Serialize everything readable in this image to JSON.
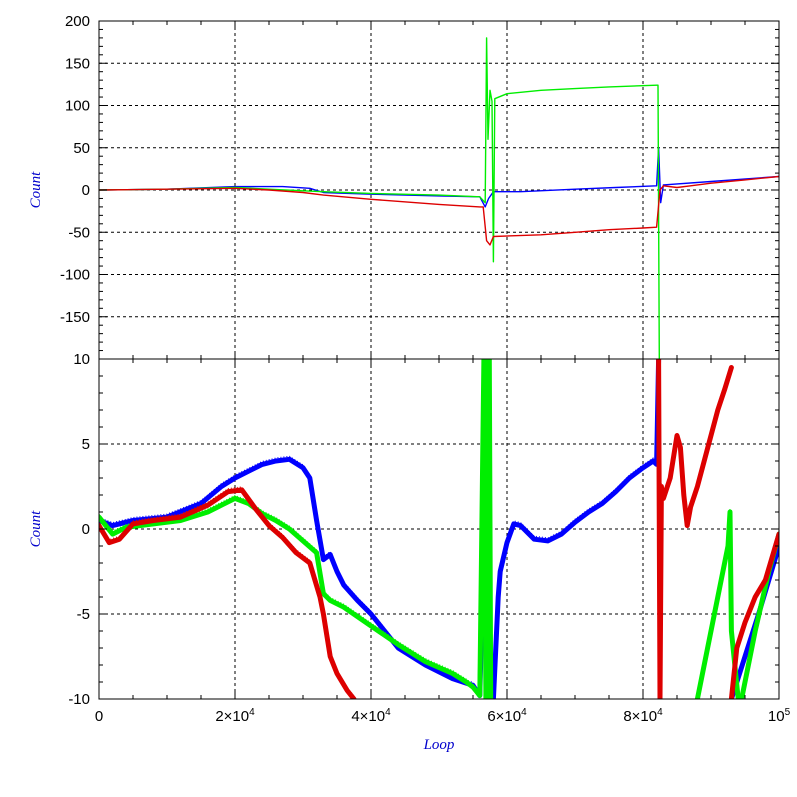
{
  "chart_data": [
    {
      "panel": "top",
      "type": "line",
      "title": "",
      "xlabel": "",
      "ylabel": "Count",
      "xlim": [
        0,
        100000
      ],
      "ylim": [
        -200,
        200
      ],
      "yticks": [
        200,
        150,
        100,
        50,
        0,
        -50,
        -100,
        -150
      ],
      "ytick_labels": [
        "200",
        "150",
        "100",
        "50",
        "0",
        "-50",
        "-100",
        "-150"
      ],
      "grid": true,
      "series": [
        {
          "color": "#0000ff",
          "points": [
            [
              0,
              0
            ],
            [
              10000,
              1
            ],
            [
              20000,
              4
            ],
            [
              27000,
              4
            ],
            [
              31000,
              2
            ],
            [
              33000,
              -3
            ],
            [
              40000,
              -5
            ],
            [
              50000,
              -7
            ],
            [
              56000,
              -8
            ],
            [
              56800,
              -20
            ],
            [
              57300,
              -10
            ],
            [
              58000,
              -2
            ],
            [
              62000,
              -2
            ],
            [
              70000,
              1
            ],
            [
              76000,
              3
            ],
            [
              82000,
              5
            ],
            [
              82300,
              50
            ],
            [
              82600,
              -15
            ],
            [
              83000,
              6
            ],
            [
              90000,
              10
            ],
            [
              100000,
              16
            ]
          ]
        },
        {
          "color": "#00ee00",
          "points": [
            [
              0,
              0
            ],
            [
              10000,
              1
            ],
            [
              20000,
              3
            ],
            [
              25000,
              1
            ],
            [
              30000,
              -1
            ],
            [
              33000,
              -2
            ],
            [
              40000,
              -4
            ],
            [
              50000,
              -6
            ],
            [
              56000,
              -8
            ],
            [
              56800,
              -15
            ],
            [
              57000,
              180
            ],
            [
              57200,
              60
            ],
            [
              57500,
              118
            ],
            [
              57800,
              105
            ],
            [
              58000,
              -85
            ],
            [
              58200,
              108
            ],
            [
              60000,
              114
            ],
            [
              65000,
              118
            ],
            [
              70000,
              120
            ],
            [
              75000,
              122
            ],
            [
              82000,
              124
            ],
            [
              82200,
              124
            ],
            [
              82400,
              -200
            ]
          ]
        },
        {
          "color": "#dd0000",
          "points": [
            [
              0,
              0
            ],
            [
              10000,
              1
            ],
            [
              20000,
              2
            ],
            [
              25000,
              0
            ],
            [
              30000,
              -3
            ],
            [
              33000,
              -6
            ],
            [
              40000,
              -11
            ],
            [
              50000,
              -17
            ],
            [
              56000,
              -20
            ],
            [
              56500,
              -20
            ],
            [
              57000,
              -60
            ],
            [
              57500,
              -65
            ],
            [
              58000,
              -55
            ],
            [
              65000,
              -53
            ],
            [
              70000,
              -50
            ],
            [
              75000,
              -47
            ],
            [
              80000,
              -45
            ],
            [
              82000,
              -44
            ],
            [
              82500,
              0
            ],
            [
              83000,
              5
            ],
            [
              85000,
              3
            ],
            [
              87000,
              5
            ],
            [
              90000,
              8
            ],
            [
              95000,
              12
            ],
            [
              100000,
              16
            ]
          ]
        }
      ]
    },
    {
      "panel": "bottom",
      "type": "line",
      "title": "",
      "xlabel": "Loop",
      "ylabel": "Count",
      "xlim": [
        0,
        100000
      ],
      "ylim": [
        -10,
        10
      ],
      "yticks": [
        10,
        5,
        0,
        -5,
        -10
      ],
      "ytick_labels": [
        "10",
        "5",
        "0",
        "-5",
        "-10"
      ],
      "xticks": [
        0,
        20000,
        40000,
        60000,
        80000,
        100000
      ],
      "xtick_labels": [
        {
          "base": "0",
          "exp": ""
        },
        {
          "base": "2×10",
          "exp": "4"
        },
        {
          "base": "4×10",
          "exp": "4"
        },
        {
          "base": "6×10",
          "exp": "4"
        },
        {
          "base": "8×10",
          "exp": "4"
        },
        {
          "base": "10",
          "exp": "5"
        }
      ],
      "grid": true,
      "series": [
        {
          "color": "#0000ff",
          "points": [
            [
              0,
              0.5
            ],
            [
              2000,
              0.2
            ],
            [
              5000,
              0.5
            ],
            [
              10000,
              0.7
            ],
            [
              15000,
              1.5
            ],
            [
              18000,
              2.5
            ],
            [
              20000,
              3.0
            ],
            [
              22000,
              3.4
            ],
            [
              24000,
              3.8
            ],
            [
              26000,
              4.0
            ],
            [
              28000,
              4.1
            ],
            [
              30000,
              3.6
            ],
            [
              31000,
              3.0
            ],
            [
              32000,
              0.5
            ],
            [
              33000,
              -1.8
            ],
            [
              34000,
              -1.5
            ],
            [
              35000,
              -2.5
            ],
            [
              36000,
              -3.3
            ],
            [
              38000,
              -4.2
            ],
            [
              40000,
              -5.0
            ],
            [
              42000,
              -6.0
            ],
            [
              44000,
              -7.0
            ],
            [
              48000,
              -8.0
            ],
            [
              52000,
              -8.8
            ],
            [
              55000,
              -9.2
            ],
            [
              56000,
              -9.8
            ],
            [
              56500,
              -2.0
            ],
            [
              56800,
              -6.0
            ],
            [
              57000,
              1.5
            ],
            [
              57500,
              -10
            ],
            [
              58000,
              -10
            ],
            [
              58700,
              -4.0
            ],
            [
              59000,
              -2.5
            ],
            [
              60000,
              -0.8
            ],
            [
              61000,
              0.3
            ],
            [
              62000,
              0.2
            ],
            [
              64000,
              -0.6
            ],
            [
              66000,
              -0.7
            ],
            [
              68000,
              -0.3
            ],
            [
              70000,
              0.4
            ],
            [
              72000,
              1.0
            ],
            [
              74000,
              1.5
            ],
            [
              76000,
              2.2
            ],
            [
              78000,
              3.0
            ],
            [
              80000,
              3.6
            ],
            [
              81500,
              4.0
            ],
            [
              82000,
              3.8
            ],
            [
              82300,
              10
            ]
          ]
        },
        {
          "color": "#0000ff",
          "points": [
            [
              93000,
              -10
            ],
            [
              95000,
              -7.5
            ],
            [
              97000,
              -5.0
            ],
            [
              98500,
              -3.0
            ],
            [
              100000,
              -1.0
            ]
          ]
        },
        {
          "color": "#00ee00",
          "points": [
            [
              0,
              0.7
            ],
            [
              2000,
              -0.3
            ],
            [
              4000,
              0.1
            ],
            [
              8000,
              0.3
            ],
            [
              12000,
              0.5
            ],
            [
              16000,
              1.0
            ],
            [
              18000,
              1.4
            ],
            [
              20000,
              1.8
            ],
            [
              22000,
              1.5
            ],
            [
              24000,
              0.9
            ],
            [
              26000,
              0.5
            ],
            [
              28000,
              0.0
            ],
            [
              30000,
              -0.7
            ],
            [
              32000,
              -1.4
            ],
            [
              33000,
              -3.8
            ],
            [
              34000,
              -4.2
            ],
            [
              36000,
              -4.6
            ],
            [
              40000,
              -5.7
            ],
            [
              44000,
              -6.8
            ],
            [
              48000,
              -7.8
            ],
            [
              52000,
              -8.5
            ],
            [
              54000,
              -9.0
            ],
            [
              55000,
              -9.3
            ],
            [
              56000,
              -9.8
            ],
            [
              56600,
              10
            ],
            [
              56900,
              -10
            ],
            [
              57100,
              10
            ],
            [
              57400,
              10
            ],
            [
              57600,
              -10
            ]
          ]
        },
        {
          "color": "#00ee00",
          "points": [
            [
              88000,
              -10
            ],
            [
              89500,
              -7.0
            ],
            [
              91000,
              -4.0
            ],
            [
              92500,
              -1.0
            ],
            [
              92800,
              1.0
            ],
            [
              93000,
              -6.0
            ],
            [
              94000,
              -10
            ]
          ]
        },
        {
          "color": "#00ee00",
          "points": [
            [
              94500,
              -10
            ],
            [
              96500,
              -6.0
            ],
            [
              98500,
              -2.5
            ],
            [
              100000,
              -0.3
            ]
          ]
        },
        {
          "color": "#dd0000",
          "points": [
            [
              0,
              0.2
            ],
            [
              1500,
              -0.8
            ],
            [
              3000,
              -0.6
            ],
            [
              5000,
              0.3
            ],
            [
              8000,
              0.5
            ],
            [
              12000,
              0.7
            ],
            [
              16000,
              1.4
            ],
            [
              19000,
              2.2
            ],
            [
              21000,
              2.3
            ],
            [
              23000,
              1.2
            ],
            [
              25000,
              0.2
            ],
            [
              27000,
              -0.5
            ],
            [
              29000,
              -1.4
            ],
            [
              31000,
              -2.0
            ],
            [
              32500,
              -4.0
            ],
            [
              33000,
              -5.0
            ],
            [
              34000,
              -7.5
            ],
            [
              35000,
              -8.5
            ],
            [
              36500,
              -9.5
            ],
            [
              37500,
              -10
            ]
          ]
        },
        {
          "color": "#dd0000",
          "points": [
            [
              82300,
              10
            ],
            [
              82500,
              -10
            ],
            [
              82700,
              2.5
            ],
            [
              83000,
              1.8
            ],
            [
              84000,
              3.0
            ],
            [
              85000,
              5.5
            ],
            [
              85500,
              4.8
            ],
            [
              86000,
              2.0
            ],
            [
              86500,
              0.2
            ],
            [
              87000,
              1.3
            ],
            [
              88000,
              2.5
            ],
            [
              89000,
              4.0
            ],
            [
              90000,
              5.5
            ],
            [
              91000,
              7.0
            ],
            [
              92000,
              8.2
            ],
            [
              93000,
              9.5
            ]
          ]
        },
        {
          "color": "#dd0000",
          "points": [
            [
              93000,
              -10
            ],
            [
              93800,
              -7.0
            ],
            [
              95000,
              -5.5
            ],
            [
              96500,
              -4.0
            ],
            [
              98000,
              -3.0
            ],
            [
              100000,
              -0.3
            ]
          ]
        }
      ]
    }
  ]
}
